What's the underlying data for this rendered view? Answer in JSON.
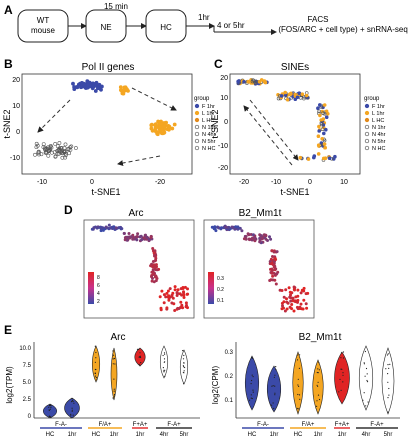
{
  "panel_a": {
    "letter": "A",
    "boxes": [
      "WT",
      "mouse",
      "NE",
      "HC"
    ],
    "time_15": "15 min",
    "time_1hr": "1hr",
    "time_45": "4 or 5hr",
    "facs": "FACS",
    "facs_detail": "(FOS/ARC + cell type)",
    "sn": "+ snRNA-seq"
  },
  "panel_b": {
    "letter": "B",
    "title": "Pol II genes",
    "xlabel": "t-SNE1",
    "ylabel": "t-SNE2",
    "xticks": [
      "-10",
      "0",
      "-20"
    ],
    "yticks": [
      "20",
      "10",
      "0",
      "-10"
    ]
  },
  "panel_c": {
    "letter": "C",
    "title": "SINEs",
    "xlabel": "t-SNE1",
    "ylabel": "t-SNE2",
    "xticks": [
      "-20",
      "-10",
      "0",
      "10"
    ],
    "yticks": [
      "20",
      "10",
      "0",
      "-10",
      "-20"
    ]
  },
  "legend": {
    "title": "group",
    "items": [
      {
        "label": "F 1hr",
        "color": "#3b4aa8",
        "fill": "solid"
      },
      {
        "label": "L 1hr",
        "color": "#f4a622",
        "fill": "solid"
      },
      {
        "label": "L HC",
        "color": "#e28a1c",
        "fill": "solid"
      },
      {
        "label": "N 1hr",
        "color": "#555555",
        "fill": "open"
      },
      {
        "label": "N 4hr",
        "color": "#555555",
        "fill": "open"
      },
      {
        "label": "N 5hr",
        "color": "#555555",
        "fill": "open"
      },
      {
        "label": "N HC",
        "color": "#555555",
        "fill": "open"
      }
    ]
  },
  "panel_d": {
    "letter": "D",
    "left_title": "Arc",
    "right_title": "B2_Mm1t",
    "left_scale": [
      "8",
      "6",
      "4",
      "2"
    ],
    "right_scale": [
      "0.3",
      "0.2",
      "0.1"
    ]
  },
  "panel_e": {
    "letter": "E",
    "left_title": "Arc",
    "right_title": "B2_Mm1t",
    "left_ylabel": "log2(TPM)",
    "right_ylabel": "log2(CPM)",
    "left_yticks": [
      "0",
      "2.5",
      "5.0",
      "7.5",
      "10.0"
    ],
    "right_yticks": [
      "0.1",
      "0.2",
      "0.3"
    ],
    "groups": [
      "F-A-",
      "F/A+",
      "F+A+",
      "F-A+"
    ],
    "sub": [
      "HC",
      "1hr",
      "HC",
      "1hr",
      "1hr",
      "4hr",
      "5hr"
    ],
    "colors": {
      "blue": "#3b4aa8",
      "orange": "#f4a622",
      "red": "#e02424",
      "white": "#ffffff"
    }
  }
}
